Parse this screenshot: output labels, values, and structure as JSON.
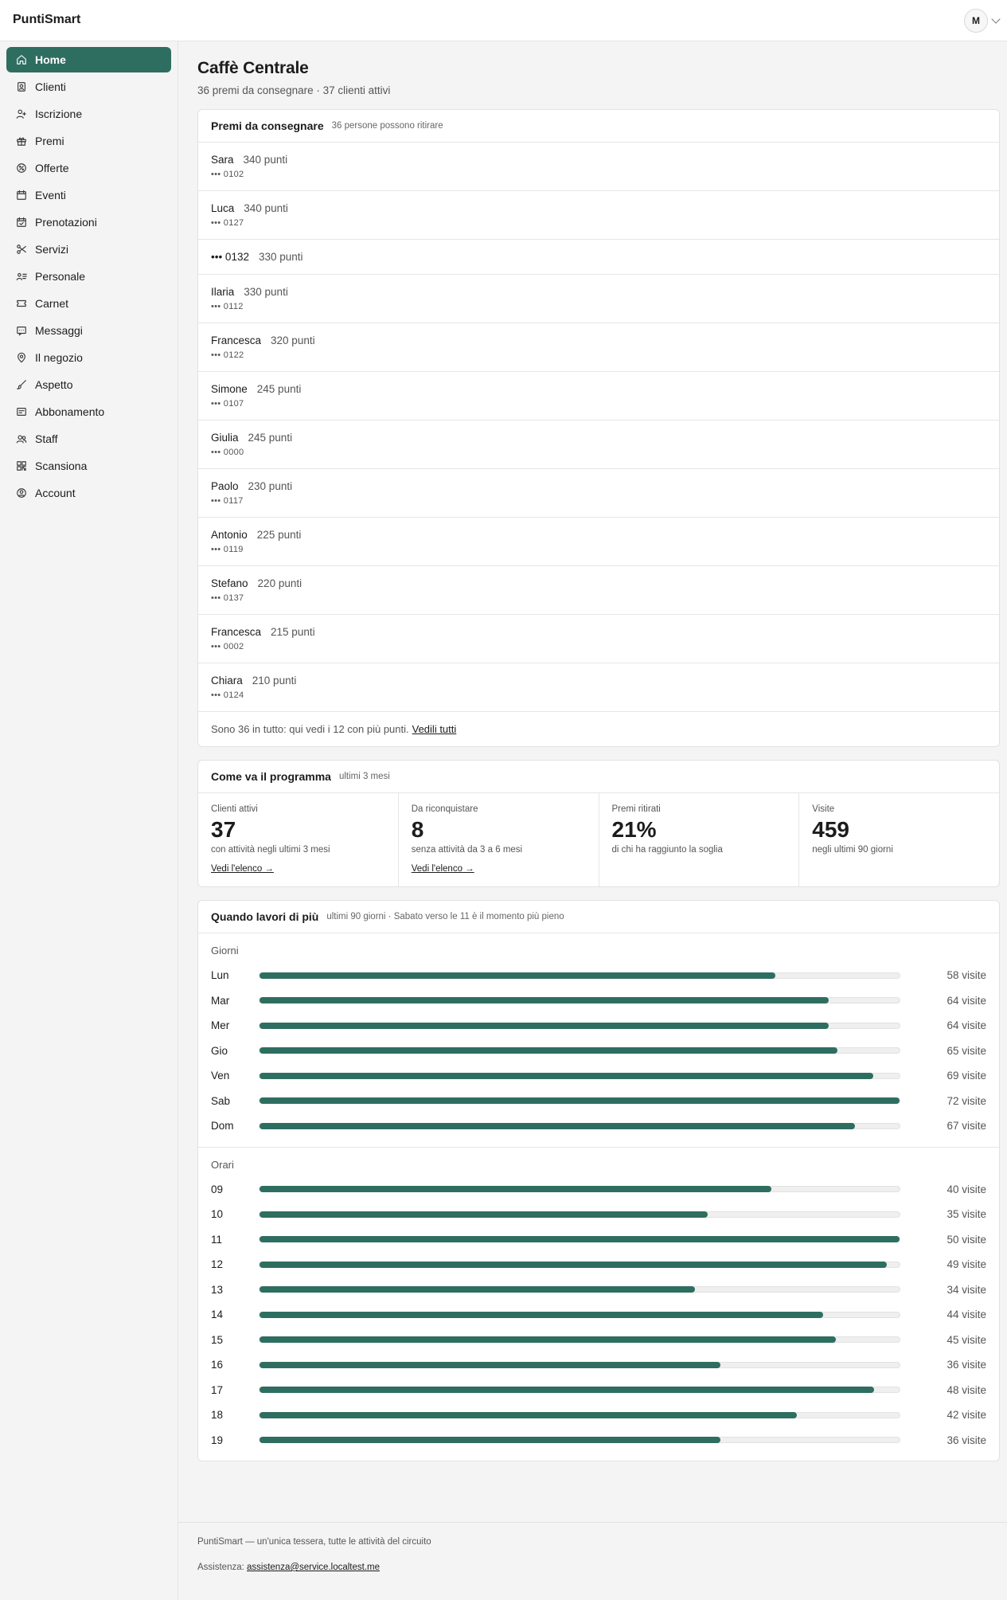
{
  "app": {
    "brand": "PuntiSmart",
    "user_initial": "M"
  },
  "sidebar": {
    "items": [
      {
        "label": "Home",
        "icon": "home-icon",
        "active": true
      },
      {
        "label": "Clienti",
        "icon": "contacts-icon"
      },
      {
        "label": "Iscrizione",
        "icon": "user-plus-icon"
      },
      {
        "label": "Premi",
        "icon": "gift-icon"
      },
      {
        "label": "Offerte",
        "icon": "tag-icon"
      },
      {
        "label": "Eventi",
        "icon": "calendar-icon"
      },
      {
        "label": "Prenotazioni",
        "icon": "calendar-check-icon"
      },
      {
        "label": "Servizi",
        "icon": "scissors-icon"
      },
      {
        "label": "Personale",
        "icon": "id-list-icon"
      },
      {
        "label": "Carnet",
        "icon": "ticket-icon"
      },
      {
        "label": "Messaggi",
        "icon": "message-icon"
      },
      {
        "label": "Il negozio",
        "icon": "map-pin-icon"
      },
      {
        "label": "Aspetto",
        "icon": "brush-icon"
      },
      {
        "label": "Abbonamento",
        "icon": "card-icon"
      },
      {
        "label": "Staff",
        "icon": "users-icon"
      },
      {
        "label": "Scansiona",
        "icon": "qr-icon"
      },
      {
        "label": "Account",
        "icon": "user-circle-icon"
      }
    ]
  },
  "page": {
    "title": "Caffè Centrale",
    "subtitle": "36 premi da consegnare · 37 clienti attivi"
  },
  "prizes": {
    "title": "Premi da consegnare",
    "hint": "36 persone possono ritirare",
    "rows": [
      {
        "name": "Sara",
        "points": "340 punti",
        "card": "••• 0102"
      },
      {
        "name": "Luca",
        "points": "340 punti",
        "card": "••• 0127"
      },
      {
        "name": "••• 0132",
        "points": "330 punti",
        "card": ""
      },
      {
        "name": "Ilaria",
        "points": "330 punti",
        "card": "••• 0112"
      },
      {
        "name": "Francesca",
        "points": "320 punti",
        "card": "••• 0122"
      },
      {
        "name": "Simone",
        "points": "245 punti",
        "card": "••• 0107"
      },
      {
        "name": "Giulia",
        "points": "245 punti",
        "card": "••• 0000"
      },
      {
        "name": "Paolo",
        "points": "230 punti",
        "card": "••• 0117"
      },
      {
        "name": "Antonio",
        "points": "225 punti",
        "card": "••• 0119"
      },
      {
        "name": "Stefano",
        "points": "220 punti",
        "card": "••• 0137"
      },
      {
        "name": "Francesca",
        "points": "215 punti",
        "card": "••• 0002"
      },
      {
        "name": "Chiara",
        "points": "210 punti",
        "card": "••• 0124"
      }
    ],
    "footer_text": "Sono 36 in tutto: qui vedi i 12 con più punti.",
    "footer_link": "Vedili tutti"
  },
  "program": {
    "title": "Come va il programma",
    "hint": "ultimi 3 mesi",
    "stats": [
      {
        "label": "Clienti attivi",
        "value": "37",
        "note": "con attività negli ultimi 3 mesi",
        "link": "Vedi l'elenco →"
      },
      {
        "label": "Da riconquistare",
        "value": "8",
        "note": "senza attività da 3 a 6 mesi",
        "link": "Vedi l'elenco →"
      },
      {
        "label": "Premi ritirati",
        "value": "21%",
        "note": "di chi ha raggiunto la soglia",
        "link": ""
      },
      {
        "label": "Visite",
        "value": "459",
        "note": "negli ultimi 90 giorni",
        "link": ""
      }
    ]
  },
  "busy": {
    "title": "Quando lavori di più",
    "hint": "ultimi 90 giorni · Sabato verso le 11 è il momento più pieno",
    "days_label": "Giorni",
    "hours_label": "Orari",
    "accent": "#2e6e61"
  },
  "chart_data": [
    {
      "type": "bar",
      "orientation": "horizontal",
      "title": "Giorni",
      "categories": [
        "Lun",
        "Mar",
        "Mer",
        "Gio",
        "Ven",
        "Sab",
        "Dom"
      ],
      "values": [
        58,
        64,
        64,
        65,
        69,
        72,
        67
      ],
      "value_labels": [
        "58 visite",
        "64 visite",
        "64 visite",
        "65 visite",
        "69 visite",
        "72 visite",
        "67 visite"
      ],
      "max": 72
    },
    {
      "type": "bar",
      "orientation": "horizontal",
      "title": "Orari",
      "categories": [
        "09",
        "10",
        "11",
        "12",
        "13",
        "14",
        "15",
        "16",
        "17",
        "18",
        "19"
      ],
      "values": [
        40,
        35,
        50,
        49,
        34,
        44,
        45,
        36,
        48,
        42,
        36
      ],
      "value_labels": [
        "40 visite",
        "35 visite",
        "50 visite",
        "49 visite",
        "34 visite",
        "44 visite",
        "45 visite",
        "36 visite",
        "48 visite",
        "42 visite",
        "36 visite"
      ],
      "max": 50
    }
  ],
  "footer": {
    "tagline": "PuntiSmart — un'unica tessera, tutte le attività del circuito",
    "support_label": "Assistenza:",
    "support_email": "assistenza@service.localtest.me"
  }
}
